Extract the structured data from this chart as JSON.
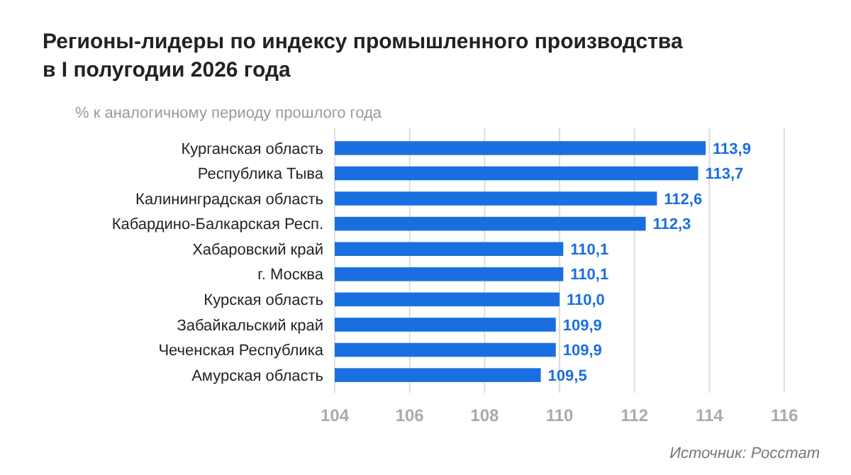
{
  "chart_data": {
    "type": "bar",
    "orientation": "horizontal",
    "title": "Регионы-лидеры по индексу промышленного производства\nв I полугодии 2026 года",
    "subtitle": "% к аналогичному периоду прошлого года",
    "categories": [
      "Курганская область",
      "Республика Тыва",
      "Калининградская область",
      "Кабардино-Балкарская Респ.",
      "Хабаровский край",
      "г. Москва",
      "Курская область",
      "Забайкальский край",
      "Чеченская Республика",
      "Амурская область"
    ],
    "values": [
      113.9,
      113.7,
      112.6,
      112.3,
      110.1,
      110.1,
      110.0,
      109.9,
      109.9,
      109.5
    ],
    "value_labels": [
      "113,9",
      "113,7",
      "112,6",
      "112,3",
      "110,1",
      "110,1",
      "110,0",
      "109,9",
      "109,9",
      "109,5"
    ],
    "color": "#1a6fe0",
    "xlim": [
      104,
      116
    ],
    "xticks": [
      104,
      106,
      108,
      110,
      112,
      114,
      116
    ],
    "grid": "x",
    "annotations": [
      "Источник: Росстат"
    ]
  }
}
